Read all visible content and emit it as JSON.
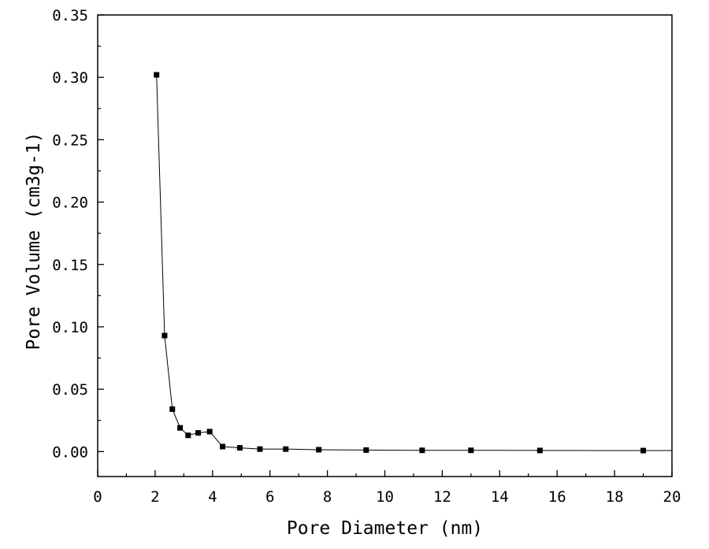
{
  "chart_data": {
    "type": "line",
    "xlabel": "Pore Diameter (nm)",
    "ylabel": "Pore Volume (cm3g-1)",
    "xlim": [
      0,
      20
    ],
    "ylim": [
      -0.02,
      0.35
    ],
    "xticks": [
      0,
      2,
      4,
      6,
      8,
      10,
      12,
      14,
      16,
      18,
      20
    ],
    "xtick_labels": [
      "0",
      "2",
      "4",
      "6",
      "8",
      "10",
      "12",
      "14",
      "16",
      "18",
      "20"
    ],
    "yticks": [
      0.0,
      0.05,
      0.1,
      0.15,
      0.2,
      0.25,
      0.3,
      0.35
    ],
    "ytick_labels": [
      "0.00",
      "0.05",
      "0.10",
      "0.15",
      "0.20",
      "0.25",
      "0.30",
      "0.35"
    ],
    "grid": false,
    "legend": "none",
    "series": [
      {
        "marker": "square",
        "color": "#000000",
        "x": [
          2.05,
          2.33,
          2.6,
          2.87,
          3.15,
          3.5,
          3.9,
          4.35,
          4.95,
          5.65,
          6.55,
          7.7,
          9.35,
          11.3,
          13.0,
          15.4,
          19.0
        ],
        "y": [
          0.302,
          0.093,
          0.034,
          0.019,
          0.013,
          0.015,
          0.016,
          0.004,
          0.003,
          0.002,
          0.002,
          0.0015,
          0.0012,
          0.001,
          0.001,
          0.0009,
          0.0008
        ]
      }
    ],
    "line_extends_to_x": 20,
    "line_end_y": 0.0008
  }
}
